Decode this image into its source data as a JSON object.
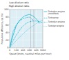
{
  "chart_data": {
    "type": "line",
    "annotations": [
      "Low dilution ratio",
      "High dilution ratio"
    ],
    "x_label": "Speed (knots, nautical miles per hour)",
    "y_label": "Propulsive efficiency, ηp (%)",
    "xlim": [
      0,
      1000
    ],
    "ylim": [
      0,
      100
    ],
    "xticks": [
      0,
      200,
      400,
      600,
      800,
      1000
    ],
    "yticks": [
      0,
      20,
      40,
      60,
      80,
      100
    ],
    "grid": true,
    "legend": "right",
    "series": [
      {
        "name": "Turbofan engine\n(modified)",
        "color": "#00aacc",
        "line_style": "solid",
        "x": [
          0,
          100,
          200,
          300,
          400,
          450,
          500,
          550,
          580,
          600,
          630,
          660,
          700,
          750,
          800,
          850,
          900
        ],
        "values": [
          0,
          32,
          58,
          72,
          80,
          83,
          85,
          86,
          87,
          87,
          86,
          85,
          83,
          80,
          76,
          71,
          64
        ]
      },
      {
        "name": "Turboprop",
        "color": "#00aacc",
        "line_style": "dashed",
        "x": [
          0,
          100,
          200,
          300,
          400,
          500,
          550,
          600,
          630,
          650,
          680,
          700
        ],
        "values": [
          0,
          42,
          60,
          70,
          76,
          79,
          80,
          80,
          79,
          78,
          75,
          72
        ]
      },
      {
        "name": "Turbofan engine",
        "color": "#00aacc",
        "line_style": "dashdot",
        "x": [
          0,
          100,
          200,
          300,
          400,
          500,
          600,
          700,
          800,
          900,
          1000
        ],
        "values": [
          0,
          18,
          33,
          46,
          57,
          64,
          68,
          70,
          70,
          68,
          65
        ]
      },
      {
        "name": "Turbojet engine",
        "color": "#00aacc",
        "line_style": "dotted",
        "x": [
          0,
          100,
          200,
          300,
          400,
          500,
          600,
          700,
          800,
          900,
          1000
        ],
        "values": [
          0,
          10,
          19,
          28,
          36,
          44,
          51,
          57,
          63,
          68,
          72
        ]
      }
    ],
    "vlines": {
      "values": [
        630,
        730
      ],
      "color": "#888888"
    }
  }
}
